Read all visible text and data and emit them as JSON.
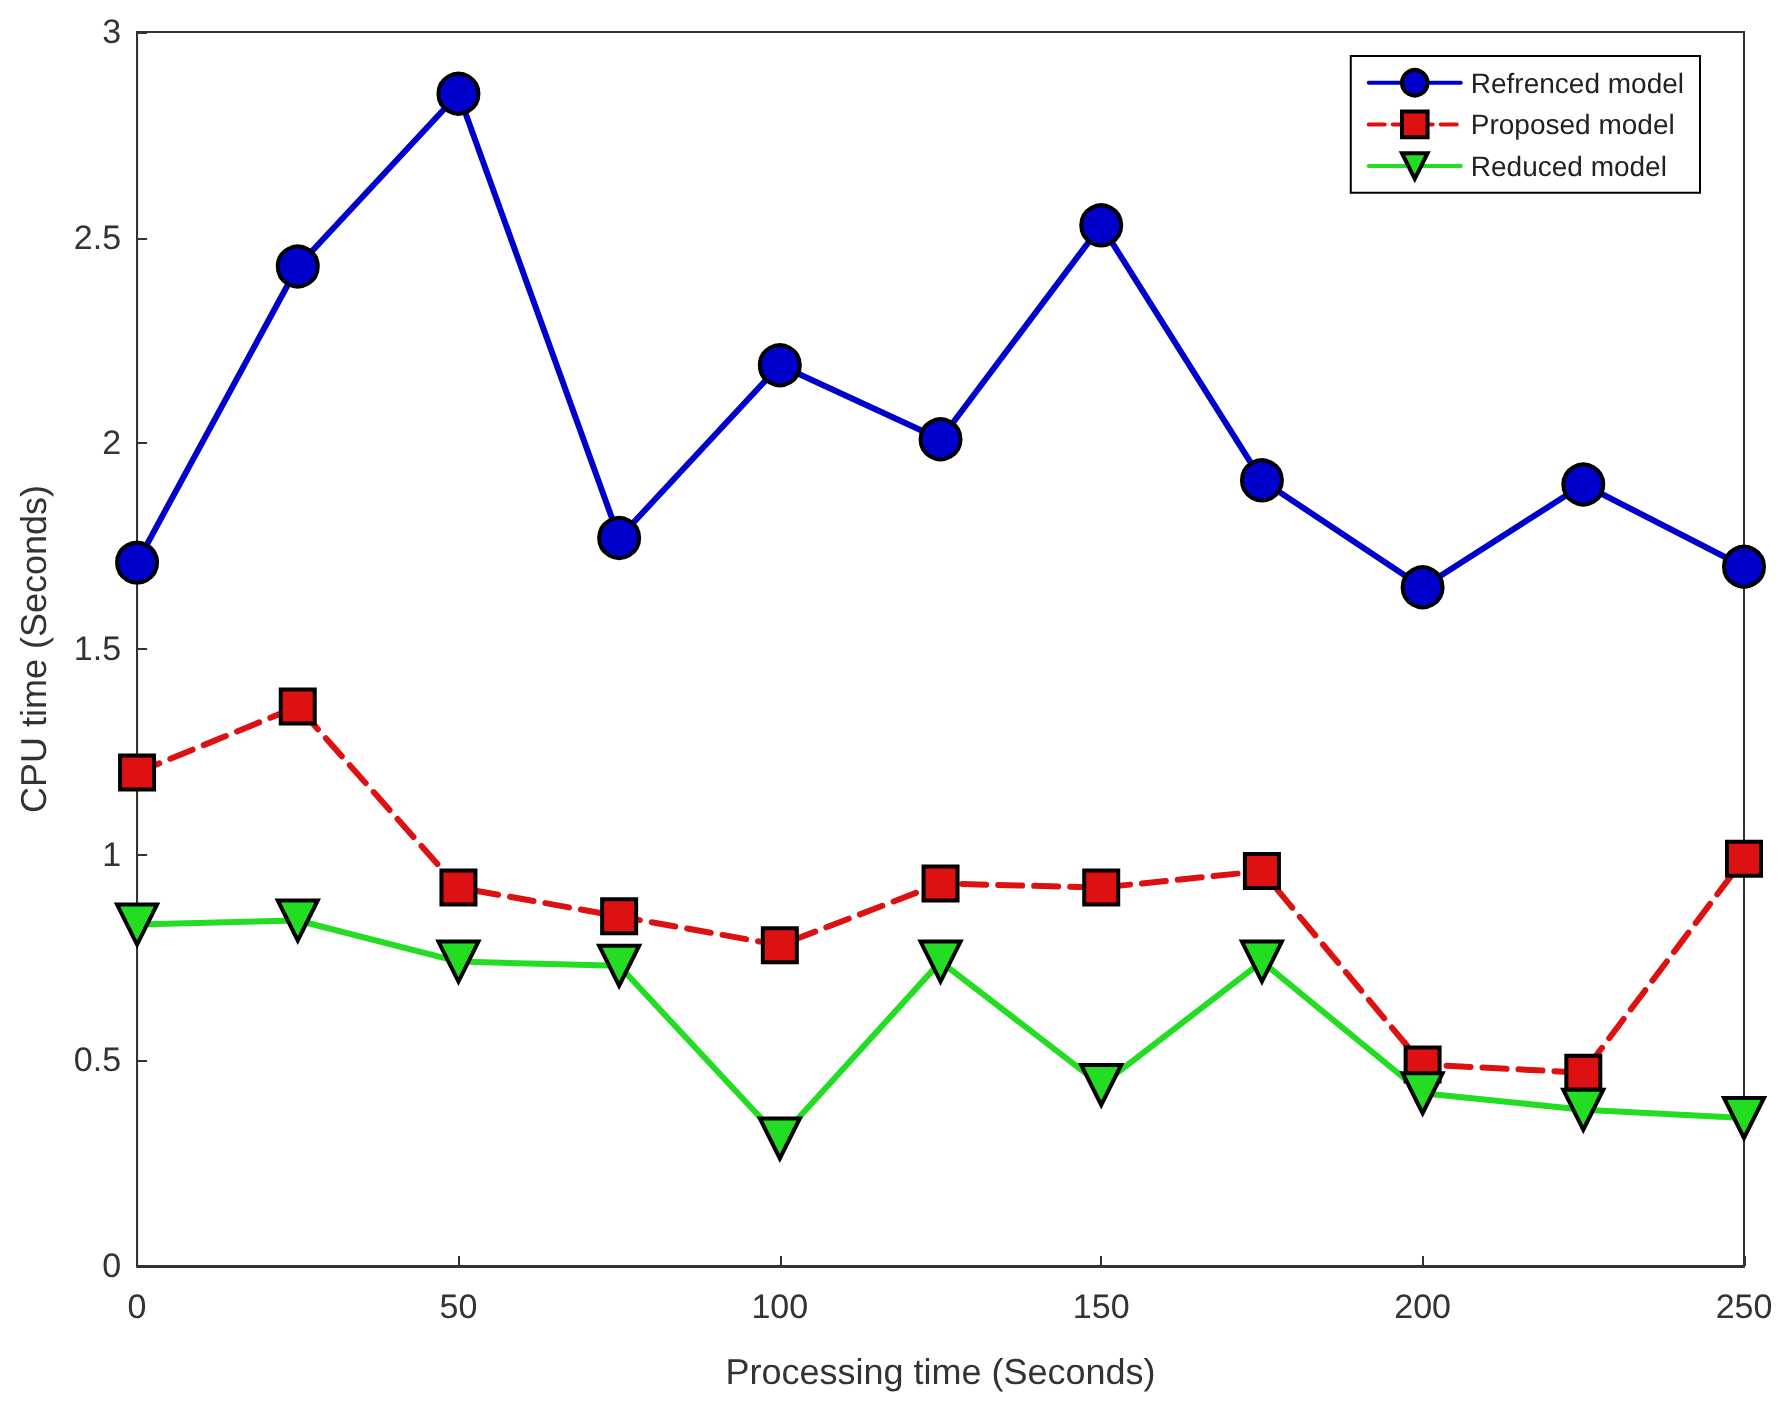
{
  "chart_data": {
    "type": "line",
    "xlabel": "Processing time (Seconds)",
    "ylabel": "CPU time (Seconds)",
    "x": [
      0,
      25,
      50,
      75,
      100,
      125,
      150,
      175,
      200,
      225,
      250
    ],
    "series": [
      {
        "name": "Refrenced model",
        "color": "#0000cc",
        "marker": "circle",
        "line_style": "solid",
        "values": [
          1.71,
          2.43,
          2.85,
          1.77,
          2.19,
          2.01,
          2.53,
          1.91,
          1.65,
          1.9,
          1.7
        ]
      },
      {
        "name": "Proposed model",
        "color": "#dd1111",
        "marker": "square",
        "line_style": "dashed",
        "values": [
          1.2,
          1.36,
          0.92,
          0.85,
          0.78,
          0.93,
          0.92,
          0.96,
          0.49,
          0.47,
          0.99
        ]
      },
      {
        "name": "Reduced model",
        "color": "#22dd22",
        "marker": "triangle",
        "line_style": "solid",
        "values": [
          0.83,
          0.84,
          0.74,
          0.73,
          0.31,
          0.74,
          0.44,
          0.74,
          0.42,
          0.38,
          0.36
        ]
      }
    ],
    "xlim": [
      0,
      250
    ],
    "xticks": [
      0,
      50,
      100,
      150,
      200,
      250
    ],
    "ylim": [
      0,
      3
    ],
    "yticks": [
      0,
      0.5,
      1,
      1.5,
      2,
      2.5,
      3
    ],
    "grid": false,
    "legend": "top right"
  }
}
